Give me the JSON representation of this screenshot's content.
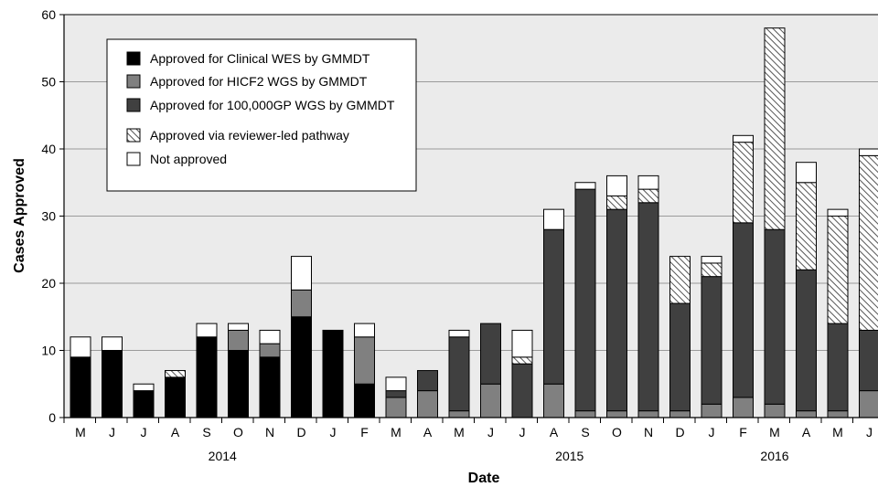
{
  "chart_data": {
    "type": "bar",
    "stacked": true,
    "xlabel": "Date",
    "ylabel": "Cases Approved",
    "ylim": [
      0,
      60
    ],
    "yticks": [
      0,
      10,
      20,
      30,
      40,
      50,
      60
    ],
    "grid": true,
    "legend_position": "top-left",
    "categories": [
      "M",
      "J",
      "J",
      "A",
      "S",
      "O",
      "N",
      "D",
      "J",
      "F",
      "M",
      "A",
      "M",
      "J",
      "J",
      "A",
      "S",
      "O",
      "N",
      "D",
      "J",
      "F",
      "M",
      "A",
      "M",
      "J"
    ],
    "years": [
      {
        "label": "2014",
        "start": 0,
        "end": 9
      },
      {
        "label": "2015",
        "start": 10,
        "end": 21
      },
      {
        "label": "2016",
        "start": 20,
        "end": 24
      }
    ],
    "series": [
      {
        "name": "Approved for Clinical WES by GMMDT",
        "fill": "#000000",
        "values": [
          9,
          10,
          4,
          6,
          12,
          10,
          9,
          15,
          13,
          5,
          0,
          0,
          0,
          0,
          0,
          0,
          0,
          0,
          0,
          0,
          0,
          0,
          0,
          0,
          0,
          0
        ]
      },
      {
        "name": "Approved for HICF2 WGS by GMMDT",
        "fill": "#808080",
        "values": [
          0,
          0,
          0,
          0,
          0,
          3,
          2,
          4,
          0,
          7,
          3,
          4,
          1,
          5,
          0,
          5,
          1,
          1,
          1,
          1,
          2,
          3,
          2,
          1,
          1,
          4
        ]
      },
      {
        "name": "Approved for 100,000GP WGS by GMMDT",
        "fill": "#404040",
        "values": [
          0,
          0,
          0,
          0,
          0,
          0,
          0,
          0,
          0,
          0,
          1,
          3,
          11,
          9,
          8,
          23,
          33,
          30,
          31,
          16,
          19,
          26,
          26,
          21,
          13,
          9
        ]
      },
      {
        "name": "Approved via reviewer-led pathway",
        "fill": "hatch",
        "values": [
          0,
          0,
          0,
          1,
          0,
          0,
          0,
          0,
          0,
          0,
          0,
          0,
          0,
          0,
          1,
          0,
          0,
          2,
          2,
          7,
          2,
          12,
          30,
          13,
          16,
          26
        ]
      },
      {
        "name": "Not approved",
        "fill": "#ffffff",
        "values": [
          3,
          2,
          1,
          0,
          2,
          1,
          2,
          5,
          0,
          2,
          2,
          0,
          1,
          0,
          4,
          3,
          1,
          3,
          2,
          0,
          1,
          1,
          0,
          3,
          1,
          1
        ]
      }
    ]
  }
}
